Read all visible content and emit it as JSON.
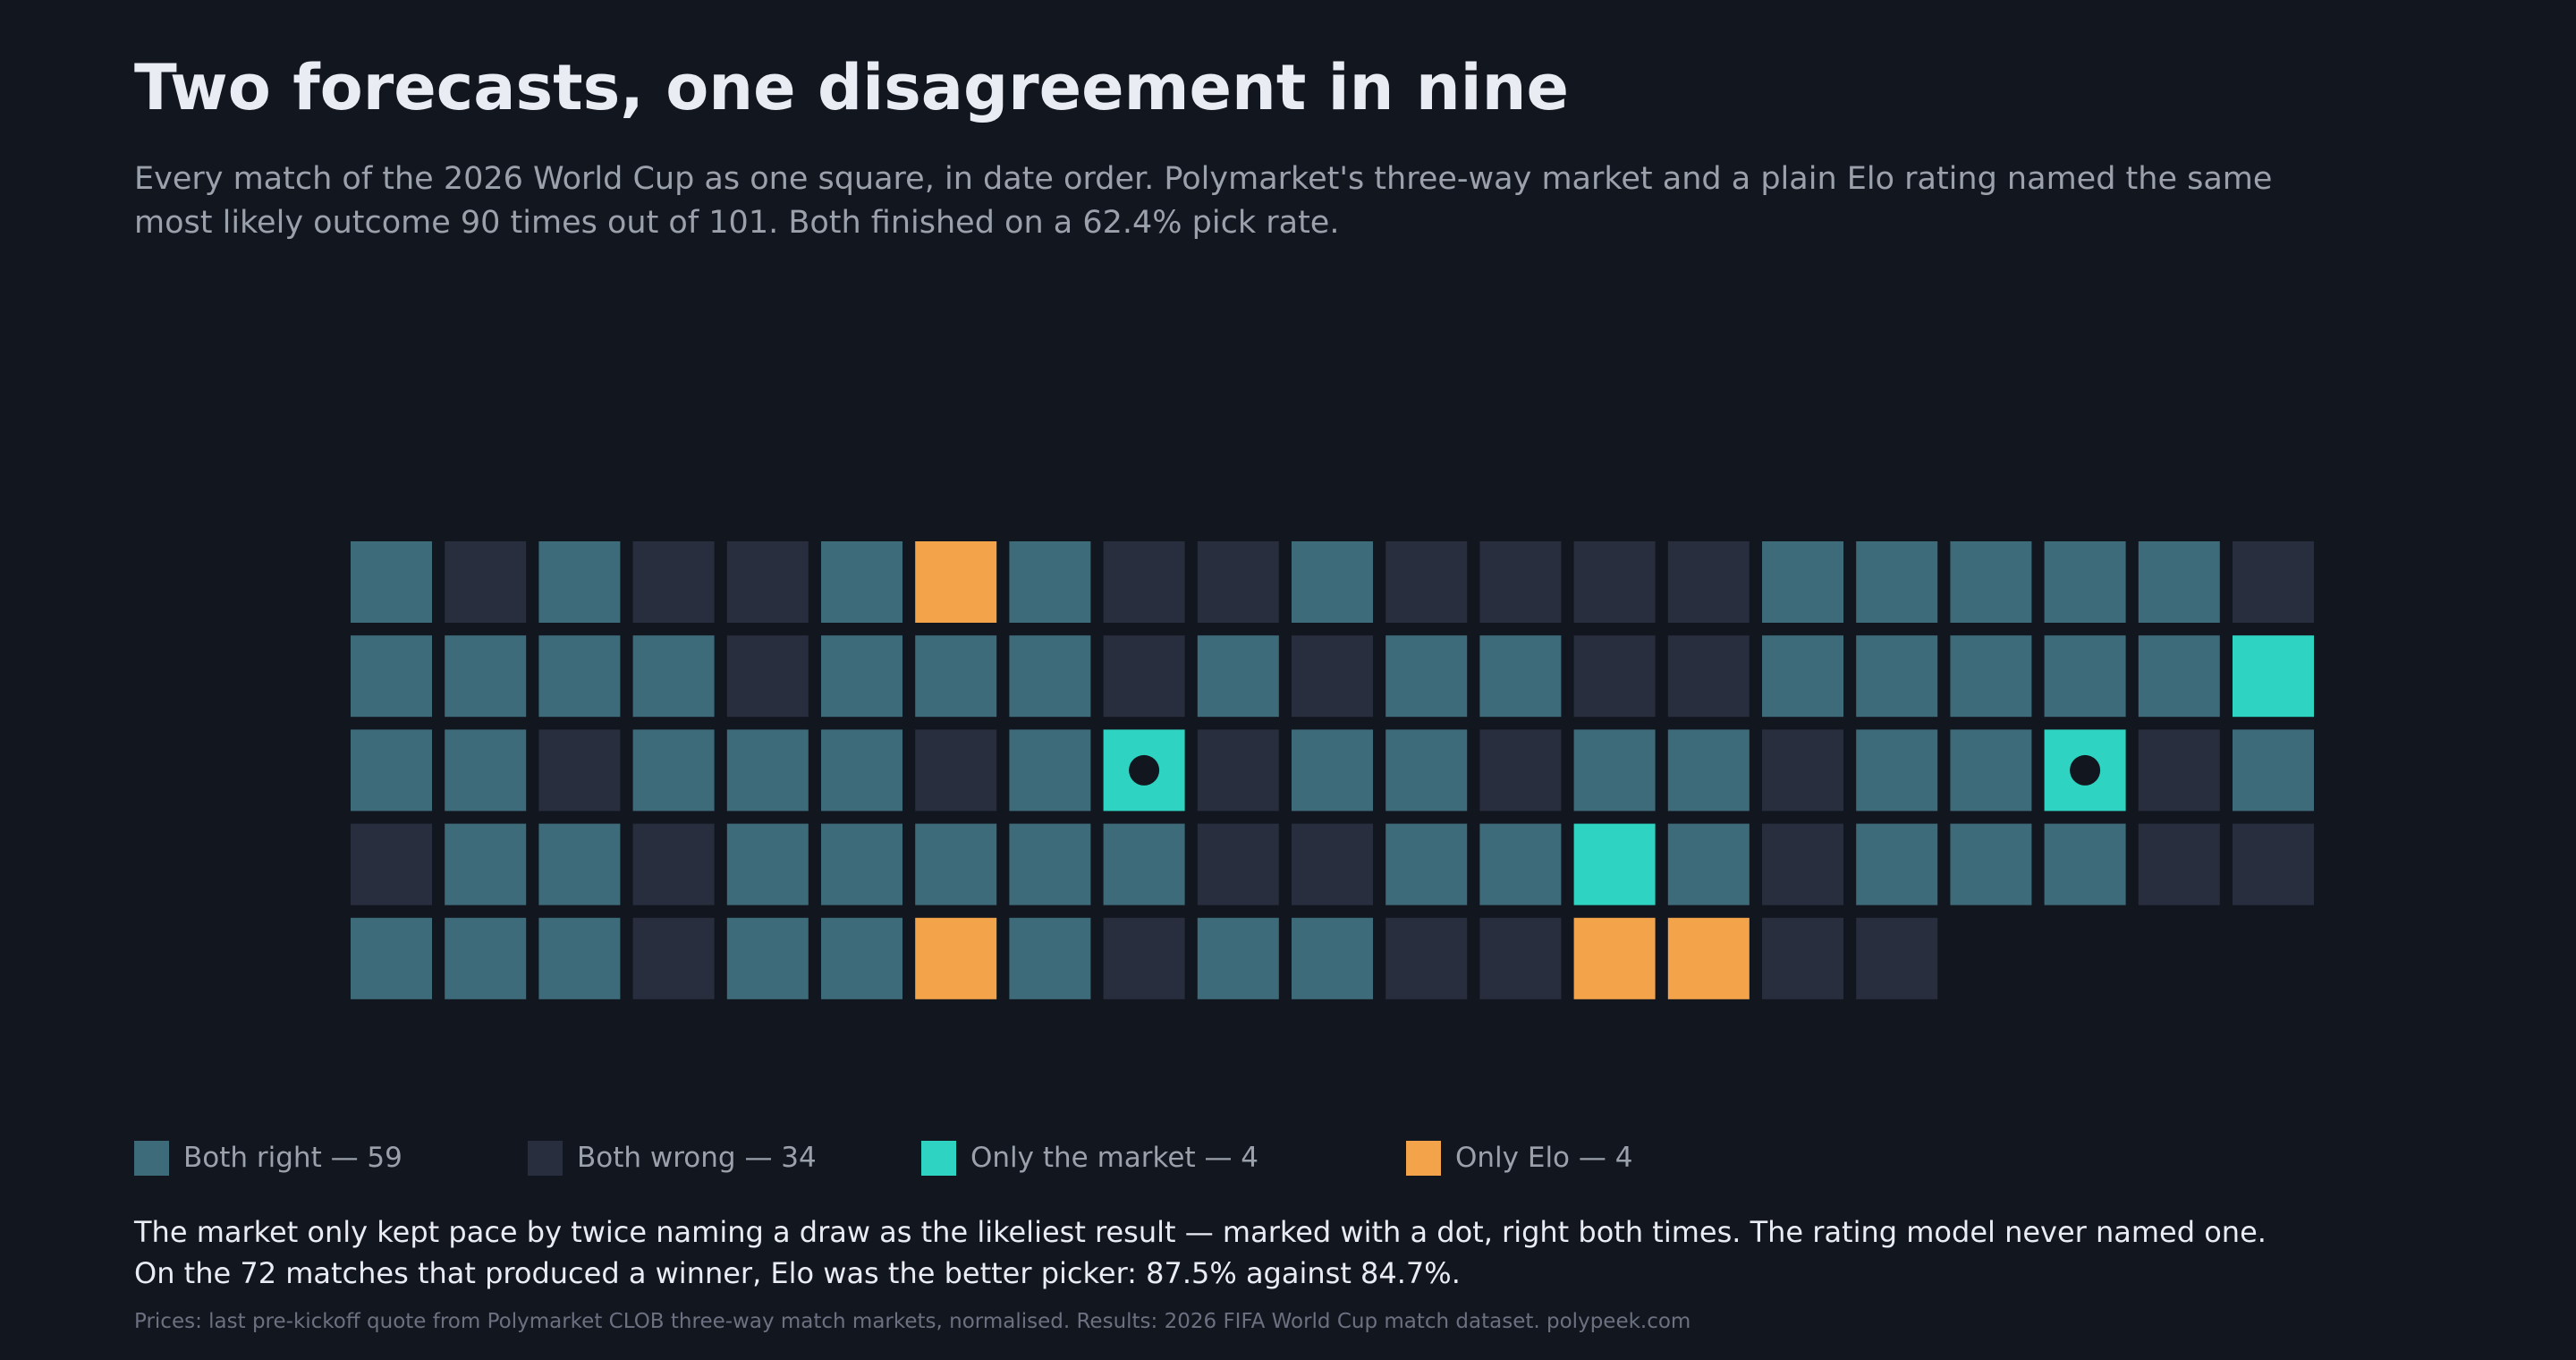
{
  "title": "Two forecasts, one disagreement in nine",
  "subtitle": "Every match of the 2026 World Cup as one square, in date order. Polymarket's three-way market and a plain Elo rating named the same most likely outcome 90 times out of 101. Both finished on a 62.4% pick rate.",
  "legend": {
    "both_right": "Both right — 59",
    "both_wrong": "Both wrong — 34",
    "only_market": "Only the market — 4",
    "only_elo": "Only Elo — 4"
  },
  "note": {
    "line1": "The market only kept pace by twice naming a draw as the likeliest result — marked with a dot, right both times. The rating model never named one.",
    "line2": "On the 72 matches that produced a winner, Elo was the better picker: 87.5% against 84.7%."
  },
  "source": "Prices: last pre-kickoff quote from Polymarket CLOB three-way match markets, normalised.  Results: 2026 FIFA World Cup match dataset.  polypeek.com",
  "colors": {
    "background": "#12161f",
    "both_right": "#3d6b79",
    "both_wrong": "#282e3d",
    "only_market": "#2fd3c2",
    "only_elo": "#f3a44b",
    "dot": "#12161f"
  },
  "chart_data": {
    "type": "waffle",
    "columns": 21,
    "order": "date order, row by row",
    "categories": [
      "both_right",
      "both_wrong",
      "only_market",
      "only_elo"
    ],
    "counts": {
      "both_right": 59,
      "both_wrong": 34,
      "only_market": 4,
      "only_elo": 4
    },
    "total_matches": 101,
    "cells": [
      "R",
      "W",
      "R",
      "W",
      "W",
      "R",
      "E",
      "R",
      "W",
      "W",
      "R",
      "W",
      "W",
      "W",
      "W",
      "R",
      "R",
      "R",
      "R",
      "R",
      "W",
      "R",
      "R",
      "R",
      "R",
      "W",
      "R",
      "R",
      "R",
      "W",
      "R",
      "W",
      "R",
      "R",
      "W",
      "W",
      "R",
      "R",
      "R",
      "R",
      "R",
      "M",
      "R",
      "R",
      "W",
      "R",
      "R",
      "R",
      "W",
      "R",
      "M",
      "W",
      "R",
      "R",
      "W",
      "R",
      "R",
      "W",
      "R",
      "R",
      "M",
      "W",
      "R",
      "W",
      "R",
      "R",
      "W",
      "R",
      "R",
      "R",
      "R",
      "R",
      "W",
      "W",
      "R",
      "R",
      "M",
      "R",
      "W",
      "R",
      "R",
      "R",
      "W",
      "W",
      "R",
      "R",
      "R",
      "W",
      "R",
      "R",
      "E",
      "R",
      "W",
      "R",
      "R",
      "W",
      "W",
      "E",
      "E",
      "W",
      "W"
    ],
    "cell_key": {
      "R": "both_right",
      "W": "both_wrong",
      "M": "only_market",
      "E": "only_elo"
    },
    "draw_pick_marked_cells": [
      50,
      60
    ]
  }
}
